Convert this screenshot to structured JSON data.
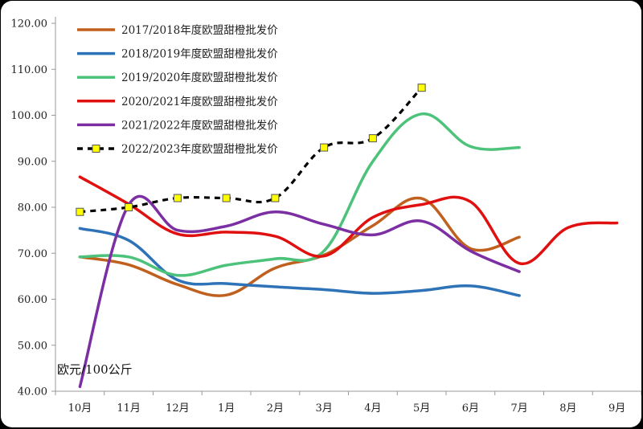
{
  "chart_data": {
    "type": "line",
    "title": "",
    "xlabel": "",
    "ylabel": "欧元/100公斤",
    "categories": [
      "10月",
      "11月",
      "12月",
      "1月",
      "2月",
      "3月",
      "4月",
      "5月",
      "6月",
      "7月",
      "8月",
      "9月"
    ],
    "y_ticks": [
      "40.00",
      "50.00",
      "60.00",
      "70.00",
      "80.00",
      "90.00",
      "100.00",
      "110.00",
      "120.00"
    ],
    "ylim": [
      40,
      120
    ],
    "grid": false,
    "legend_position": "top-left",
    "series": [
      {
        "name": "2017/2018年度欧盟甜橙批发价",
        "color": "#C0601E",
        "style": "solid",
        "markers": false,
        "values": [
          69.2,
          67.5,
          63.2,
          60.9,
          66.8,
          69.6,
          76.0,
          81.9,
          71.0,
          73.5,
          null,
          null
        ]
      },
      {
        "name": "2018/2019年度欧盟甜橙批发价",
        "color": "#2E72B8",
        "style": "solid",
        "markers": false,
        "values": [
          75.4,
          72.8,
          64.2,
          63.4,
          62.7,
          62.1,
          61.3,
          61.9,
          62.9,
          60.8,
          null,
          null
        ]
      },
      {
        "name": "2019/2020年度欧盟甜橙批发价",
        "color": "#4CC27A",
        "style": "solid",
        "markers": false,
        "values": [
          69.2,
          69.2,
          65.2,
          67.4,
          68.8,
          70.5,
          90.0,
          100.3,
          93.2,
          93.0,
          null,
          null
        ]
      },
      {
        "name": "2020/2021年度欧盟甜橙批发价",
        "color": "#E01010",
        "style": "solid",
        "markers": false,
        "values": [
          86.6,
          80.7,
          74.2,
          74.6,
          73.7,
          69.4,
          77.8,
          80.6,
          81.2,
          67.8,
          75.6,
          76.6
        ]
      },
      {
        "name": "2021/2022年度欧盟甜橙批发价",
        "color": "#7B2FA3",
        "style": "solid",
        "markers": false,
        "values": [
          41.0,
          80.5,
          75.0,
          75.9,
          79.0,
          76.3,
          74.0,
          77.0,
          70.5,
          66.0,
          null,
          null
        ]
      },
      {
        "name": "2022/2023年度欧盟甜橙批发价",
        "color": "#000000",
        "style": "dashed",
        "markers": true,
        "marker_color": "#FFFF00",
        "values": [
          79.0,
          80.0,
          82.0,
          82.0,
          82.0,
          93.0,
          95.0,
          106.0,
          null,
          null,
          null,
          null
        ]
      }
    ]
  }
}
